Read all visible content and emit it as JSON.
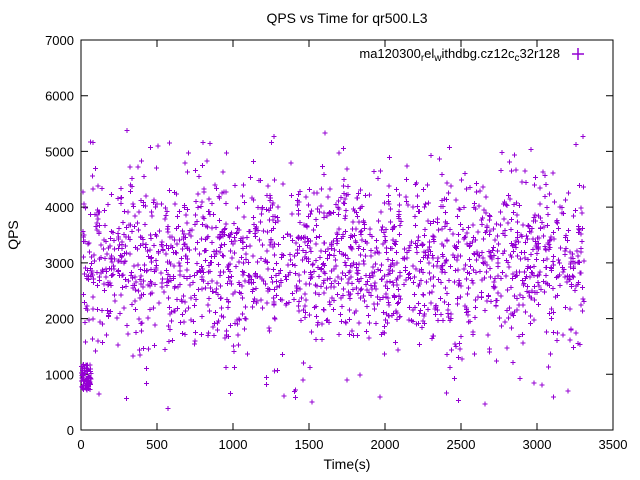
{
  "title": "QPS vs Time for qr500.L3",
  "axes": {
    "xlabel": "Time(s)",
    "ylabel": "QPS",
    "xlim": [
      0,
      3500
    ],
    "ylim": [
      0,
      7000
    ],
    "x_ticks": [
      0,
      500,
      1000,
      1500,
      2000,
      2500,
      3000,
      3500
    ],
    "y_ticks": [
      0,
      1000,
      2000,
      3000,
      4000,
      5000,
      6000,
      7000
    ]
  },
  "legend": {
    "label_plain": "ma120300_rel_withdbg.cz12c_c32r128",
    "segments": [
      {
        "t": "ma120300",
        "sub": false
      },
      {
        "t": "r",
        "sub": true
      },
      {
        "t": "el",
        "sub": false
      },
      {
        "t": "w",
        "sub": true
      },
      {
        "t": "ithdbg.cz12c",
        "sub": false
      },
      {
        "t": "c",
        "sub": true
      },
      {
        "t": "32r128",
        "sub": false
      }
    ],
    "marker": "plus",
    "color": "#9400d3"
  },
  "chart_data": {
    "type": "scatter",
    "title": "QPS vs Time for qr500.L3",
    "xlabel": "Time(s)",
    "ylabel": "QPS",
    "xlim": [
      0,
      3500
    ],
    "ylim": [
      0,
      7000
    ],
    "grid": false,
    "legend_position": "top-right",
    "series": [
      {
        "name": "ma120300_rel_withdbg.cz12c_c32r128",
        "color": "#9400d3",
        "marker": "plus",
        "marker_size": 5,
        "n_points": 1900,
        "x_range": [
          8,
          3310
        ],
        "y_mean": 3050,
        "y_stddev": 760,
        "y_clip": [
          350,
          5880
        ],
        "startup_cluster": {
          "n": 70,
          "x_range": [
            2,
            65
          ],
          "y_range": [
            720,
            1180
          ]
        },
        "low_outliers": {
          "n": 18,
          "x_range": [
            60,
            3300
          ],
          "y_range": [
            360,
            900
          ]
        },
        "seed": 42
      }
    ]
  }
}
